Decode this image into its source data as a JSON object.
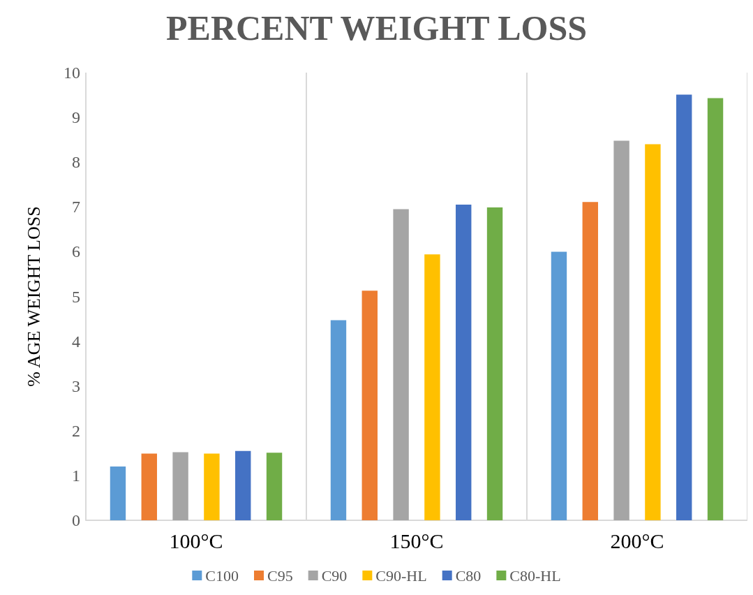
{
  "chart_data": {
    "type": "bar",
    "title": "PERCENT WEIGHT LOSS",
    "ylabel": "% AGE WEIGHT LOSS",
    "categories": [
      "100°C",
      "150°C",
      "200°C"
    ],
    "series": [
      {
        "name": "C100",
        "color": "#5b9bd5",
        "values": [
          1.2,
          4.47,
          6.0
        ]
      },
      {
        "name": "C95",
        "color": "#ed7d31",
        "values": [
          1.49,
          5.13,
          7.11
        ]
      },
      {
        "name": "C90",
        "color": "#a5a5a5",
        "values": [
          1.52,
          6.95,
          8.48
        ]
      },
      {
        "name": "C90-HL",
        "color": "#ffc000",
        "values": [
          1.49,
          5.94,
          8.4
        ]
      },
      {
        "name": "C80",
        "color": "#4472c4",
        "values": [
          1.55,
          7.05,
          9.51
        ]
      },
      {
        "name": "C80-HL",
        "color": "#70ad47",
        "values": [
          1.51,
          6.99,
          9.43
        ]
      }
    ],
    "ylim": [
      0,
      10
    ],
    "yticks": [
      0,
      1,
      2,
      3,
      4,
      5,
      6,
      7,
      8,
      9,
      10
    ],
    "grid": "x",
    "legend": "bottom"
  }
}
